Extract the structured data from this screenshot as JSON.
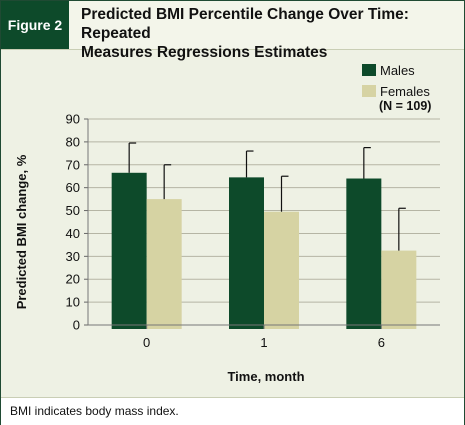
{
  "figure": {
    "label": "Figure 2",
    "title_line1": "Predicted BMI Percentile Change Over Time: Repeated",
    "title_line2": "Measures Regressions Estimates"
  },
  "footnote": "BMI indicates body mass index.",
  "chart_data": {
    "type": "bar",
    "categories": [
      "0",
      "1",
      "6"
    ],
    "series": [
      {
        "name": "Males",
        "values": [
          66.5,
          64.5,
          64.0
        ],
        "error": [
          13.0,
          11.5,
          13.5
        ],
        "color": "#0d4a2a"
      },
      {
        "name": "Females",
        "values": [
          55.0,
          49.5,
          32.5
        ],
        "error": [
          15.0,
          15.5,
          18.5
        ],
        "color": "#d6d3a3"
      }
    ],
    "note": "(N = 109)",
    "xlabel": "Time, month",
    "ylabel": "Predicted BMI change, %",
    "ylim": [
      0,
      90
    ],
    "yticks": [
      0,
      10,
      20,
      30,
      40,
      50,
      60,
      70,
      80,
      90
    ],
    "grid": true,
    "legend_position": "top-right"
  }
}
